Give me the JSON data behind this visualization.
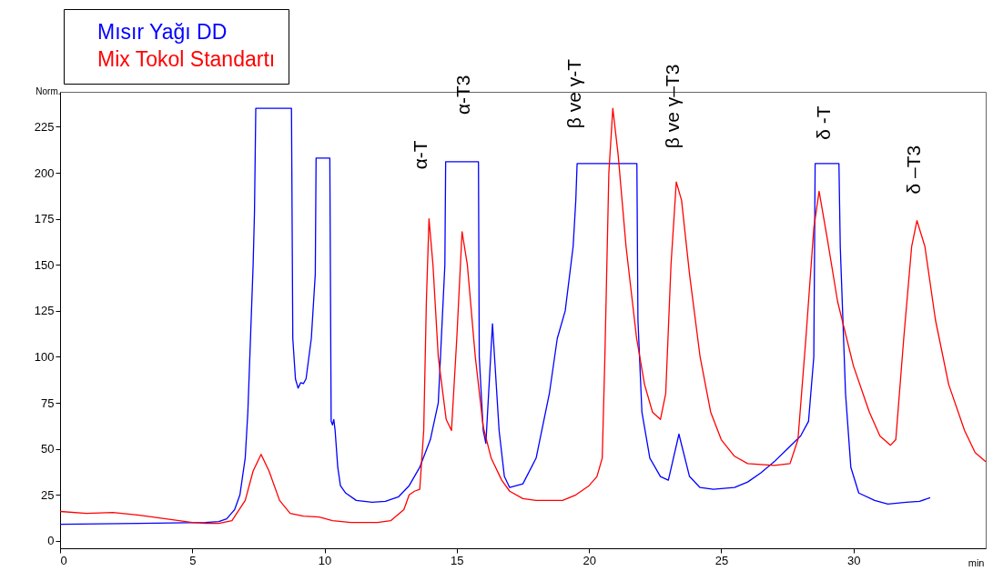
{
  "chart_data": {
    "type": "line",
    "ylabel": "Norm.",
    "xlabel": "min",
    "xlim": [
      0,
      35
    ],
    "xticks": [
      0,
      5,
      10,
      15,
      20,
      25,
      30
    ],
    "ylim": [
      -4,
      244
    ],
    "yticks": [
      0,
      25,
      50,
      75,
      100,
      125,
      150,
      175,
      200,
      225
    ],
    "grid": false,
    "legend": "top left",
    "marker": "none",
    "line_style": "solid",
    "series": [
      {
        "name": "Mısır Yağı DD",
        "color": "#0000ff",
        "x": [
          0,
          3,
          5.5,
          6,
          6.3,
          6.6,
          6.8,
          7.0,
          7.1,
          7.2,
          7.3,
          7.35,
          7.4,
          8.75,
          8.8,
          8.9,
          9.0,
          9.1,
          9.2,
          9.3,
          9.5,
          9.65,
          9.68,
          10.2,
          10.25,
          10.3,
          10.35,
          10.4,
          10.5,
          10.6,
          10.8,
          11.2,
          11.8,
          12.3,
          12.8,
          13.2,
          13.6,
          14.0,
          14.3,
          14.55,
          14.58,
          15.82,
          15.85,
          16.0,
          16.1,
          16.35,
          16.6,
          16.8,
          17.0,
          17.5,
          18.0,
          18.5,
          18.8,
          19.1,
          19.4,
          19.5,
          19.55,
          21.81,
          21.85,
          22.0,
          22.3,
          22.7,
          23.0,
          23.4,
          23.8,
          24.2,
          24.7,
          25.5,
          26.0,
          26.5,
          27.0,
          27.5,
          28.0,
          28.3,
          28.5,
          28.55,
          29.45,
          29.5,
          29.7,
          29.9,
          30.2,
          30.8,
          31.3,
          32.0,
          32.5,
          32.9
        ],
        "values": [
          9,
          9.5,
          10,
          10.5,
          12,
          17,
          25,
          45,
          70,
          110,
          150,
          178,
          235,
          235,
          110,
          88,
          83,
          86,
          85.5,
          88,
          110,
          145,
          208,
          208,
          65,
          63,
          66,
          60,
          40,
          30,
          26,
          22,
          21,
          21.5,
          24,
          30,
          40,
          55,
          75,
          150,
          206,
          206,
          100,
          60,
          53,
          118,
          60,
          35,
          29,
          31,
          45,
          80,
          110,
          125,
          160,
          185,
          205,
          205,
          120,
          70,
          45,
          35,
          33,
          58,
          35,
          29,
          28,
          29,
          32,
          37,
          43,
          50,
          57,
          65,
          100,
          205,
          205,
          160,
          80,
          40,
          26,
          22,
          20,
          21,
          21.5,
          23.5
        ]
      },
      {
        "name": "Mix Tokol Standartı",
        "color": "#ff0000",
        "x": [
          0,
          1,
          2,
          3,
          4,
          5,
          5.5,
          6.0,
          6.5,
          7.0,
          7.3,
          7.6,
          7.9,
          8.3,
          8.7,
          9.2,
          9.8,
          10.3,
          11,
          12,
          12.5,
          13.0,
          13.2,
          13.4,
          13.6,
          13.75,
          13.85,
          13.95,
          14.1,
          14.3,
          14.6,
          14.8,
          15.0,
          15.2,
          15.4,
          15.7,
          16.0,
          16.3,
          16.7,
          17.0,
          17.5,
          18,
          19,
          19.5,
          20.0,
          20.3,
          20.5,
          20.6,
          20.75,
          20.9,
          21.1,
          21.4,
          21.8,
          22.1,
          22.4,
          22.7,
          22.9,
          23.1,
          23.3,
          23.5,
          23.8,
          24.2,
          24.6,
          25.0,
          25.5,
          26.0,
          27.0,
          27.6,
          27.9,
          28.2,
          28.5,
          28.7,
          29.0,
          29.4,
          30.0,
          30.6,
          31.0,
          31.4,
          31.6,
          31.9,
          32.2,
          32.4,
          32.7,
          33.1,
          33.6,
          34.2,
          34.6,
          35.0
        ],
        "values": [
          16,
          15,
          15.5,
          14,
          12,
          10,
          9.5,
          9.5,
          11,
          22,
          38,
          47,
          38,
          22,
          15,
          13.5,
          13,
          11,
          10,
          10,
          11,
          17,
          25,
          27,
          28,
          60,
          130,
          175,
          150,
          100,
          66,
          60,
          110,
          168,
          150,
          100,
          62,
          45,
          33,
          27,
          23,
          22,
          22,
          25,
          30,
          35,
          45,
          100,
          200,
          235,
          210,
          160,
          110,
          85,
          70,
          66,
          80,
          150,
          195,
          185,
          145,
          100,
          70,
          55,
          46,
          42,
          41,
          42,
          55,
          110,
          170,
          190,
          165,
          130,
          95,
          70,
          57,
          52,
          55,
          110,
          160,
          174,
          160,
          120,
          85,
          60,
          48,
          43
        ]
      }
    ],
    "annotations": [
      "α-T",
      "α-T3",
      "β ve γ-T",
      "β ve γ–T3",
      "δ -T",
      "δ –T3"
    ]
  }
}
